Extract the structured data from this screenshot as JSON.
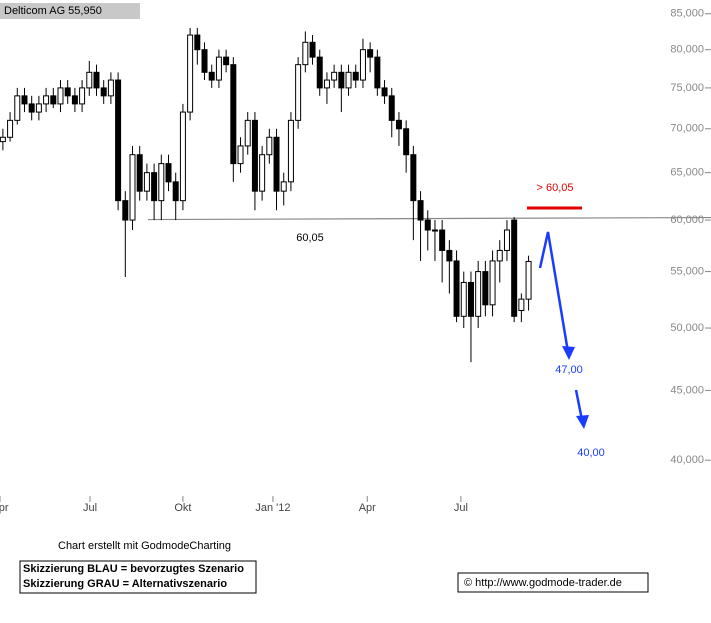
{
  "chart_data": {
    "type": "candlestick",
    "title": "Delticom AG 55,950",
    "log_scale": true,
    "grid": false,
    "ylim": [
      37.4,
      87
    ],
    "yticks": [
      {
        "value": 85,
        "label": "85,000"
      },
      {
        "value": 80,
        "label": "80,000"
      },
      {
        "value": 75,
        "label": "75,000"
      },
      {
        "value": 70,
        "label": "70,000"
      },
      {
        "value": 65,
        "label": "65,000"
      },
      {
        "value": 60,
        "label": "60,000"
      },
      {
        "value": 55,
        "label": "55,000"
      },
      {
        "value": 50,
        "label": "50,000"
      },
      {
        "value": 45,
        "label": "45,000"
      },
      {
        "value": 40,
        "label": "40,000"
      }
    ],
    "xlim": [
      -0.4,
      97.5
    ],
    "xticks": [
      {
        "value": -0.4,
        "label": "Apr"
      },
      {
        "value": 12.1,
        "label": "Jul"
      },
      {
        "value": 25,
        "label": "Okt"
      },
      {
        "value": 37.5,
        "label": "Jan '12"
      },
      {
        "value": 50.6,
        "label": "Apr"
      },
      {
        "value": 63.6,
        "label": "Jul"
      }
    ],
    "open": [
      68.5,
      69,
      71,
      74,
      73,
      72,
      73,
      74,
      73,
      75,
      74,
      73,
      75,
      77,
      75,
      74,
      76,
      62,
      60,
      67,
      63,
      65,
      62,
      66,
      64,
      62,
      72,
      82,
      80,
      77,
      76,
      79,
      78,
      66,
      68,
      71,
      63,
      67,
      69,
      63,
      64,
      71,
      78,
      81,
      79,
      75,
      76,
      77,
      75,
      77,
      76,
      80,
      79,
      75,
      74,
      71,
      70,
      67,
      62,
      60,
      59,
      59,
      57,
      56,
      51,
      54,
      51,
      55,
      52,
      56,
      57,
      60,
      51.5,
      52.5
    ],
    "high": [
      70,
      72,
      75,
      75,
      74,
      74,
      75,
      75,
      76,
      76,
      75,
      76,
      78.5,
      78,
      76,
      77,
      77,
      63,
      68,
      68,
      66,
      66,
      67,
      67,
      65,
      73,
      83,
      83,
      81,
      78,
      80,
      80,
      79,
      69,
      72,
      72,
      68,
      70,
      70,
      65,
      72,
      79,
      82.5,
      82,
      80,
      77,
      78,
      78,
      78,
      78,
      81.5,
      81,
      80,
      76,
      75,
      72,
      71,
      68,
      63,
      61,
      60,
      60,
      58,
      57,
      55,
      55,
      56,
      56,
      57,
      58,
      60,
      60.3,
      53,
      56.5
    ],
    "low": [
      67.5,
      68.5,
      70.5,
      72,
      71,
      71,
      72,
      72.5,
      72,
      73,
      72,
      72,
      74,
      74,
      73,
      73,
      61,
      54.5,
      59,
      62,
      62,
      60,
      60,
      63,
      60,
      61,
      71,
      78,
      76,
      75,
      75,
      77,
      64,
      65,
      67,
      61,
      62,
      66,
      61,
      61.5,
      63,
      70,
      77,
      78,
      74,
      73,
      75,
      72,
      74,
      75,
      75,
      77,
      74,
      73,
      69,
      68,
      65,
      58,
      56,
      57,
      56,
      54,
      53,
      50.5,
      50,
      47.2,
      50,
      51,
      51,
      54,
      56,
      50.5,
      50.5,
      51.5
    ],
    "close": [
      69,
      71,
      74,
      73,
      72,
      73,
      74,
      73,
      75,
      74,
      73,
      75,
      77,
      75,
      74,
      76,
      62,
      60,
      67,
      63,
      65,
      62,
      66,
      64,
      62,
      72,
      82,
      80,
      77,
      76,
      79,
      78,
      66,
      68,
      71,
      63,
      67,
      69,
      63,
      64,
      71,
      78,
      81,
      79,
      75,
      76,
      77,
      75,
      77,
      76,
      80,
      79,
      75,
      74,
      71,
      70,
      67,
      62,
      60,
      59,
      59,
      57,
      56,
      51,
      54,
      51,
      55,
      52,
      56,
      57,
      59,
      51,
      52.5,
      55.95
    ],
    "up_color": "#ffffff",
    "down_color": "#000000",
    "support": {
      "value": 60.05,
      "label": "60,05"
    },
    "annotations": [
      "> 60,05",
      "47,00",
      "40,00"
    ],
    "footer": {
      "credit": "Chart erstellt mit GodmodeCharting",
      "legend": [
        "Skizzierung BLAU = bevorzugtes Szenario",
        "Skizzierung GRAU = Alternativszenario"
      ],
      "copyright": "© http://www.godmode-trader.de"
    }
  }
}
